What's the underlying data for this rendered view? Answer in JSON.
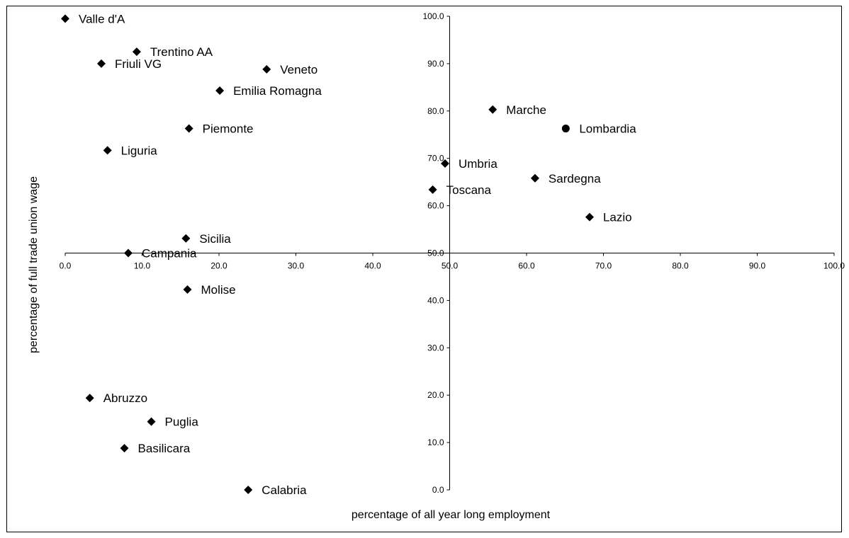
{
  "chart_data": {
    "type": "scatter",
    "xlabel": "percentage of all year long employment",
    "ylabel": "percentage of full trade union wage",
    "xlim": [
      0,
      100
    ],
    "ylim": [
      0,
      100
    ],
    "x_ticks": [
      "0.0",
      "10.0",
      "20.0",
      "30.0",
      "40.0",
      "50.0",
      "60.0",
      "70.0",
      "80.0",
      "90.0",
      "100.0"
    ],
    "y_ticks": [
      "0.0",
      "10.0",
      "20.0",
      "30.0",
      "40.0",
      "50.0",
      "60.0",
      "70.0",
      "80.0",
      "90.0",
      "100.0"
    ],
    "axes_cross": {
      "x": 50,
      "y": 50
    },
    "grid": false,
    "points": [
      {
        "label": "Valle d'A",
        "x": 0.0,
        "y": 99.5,
        "marker": "diamond"
      },
      {
        "label": "Trentino AA",
        "x": 9.3,
        "y": 92.5,
        "marker": "diamond"
      },
      {
        "label": "Friuli VG",
        "x": 4.7,
        "y": 90.0,
        "marker": "diamond"
      },
      {
        "label": "Veneto",
        "x": 26.2,
        "y": 88.8,
        "marker": "diamond"
      },
      {
        "label": "Emilia Romagna",
        "x": 20.1,
        "y": 84.3,
        "marker": "diamond"
      },
      {
        "label": "Piemonte",
        "x": 16.1,
        "y": 76.3,
        "marker": "diamond"
      },
      {
        "label": "Liguria",
        "x": 5.5,
        "y": 71.7,
        "marker": "diamond"
      },
      {
        "label": "Sicilia",
        "x": 15.7,
        "y": 53.1,
        "marker": "diamond"
      },
      {
        "label": "Campania",
        "x": 8.2,
        "y": 50.0,
        "marker": "diamond"
      },
      {
        "label": "Molise",
        "x": 15.9,
        "y": 42.3,
        "marker": "diamond"
      },
      {
        "label": "Abruzzo",
        "x": 3.2,
        "y": 19.4,
        "marker": "diamond"
      },
      {
        "label": "Puglia",
        "x": 11.2,
        "y": 14.4,
        "marker": "diamond"
      },
      {
        "label": "Basilicara",
        "x": 7.7,
        "y": 8.8,
        "marker": "diamond"
      },
      {
        "label": "Calabria",
        "x": 23.8,
        "y": 0.0,
        "marker": "diamond"
      },
      {
        "label": "Marche",
        "x": 55.6,
        "y": 80.3,
        "marker": "diamond"
      },
      {
        "label": "Lombardia",
        "x": 65.1,
        "y": 76.3,
        "marker": "circle"
      },
      {
        "label": "Umbria",
        "x": 49.4,
        "y": 68.9,
        "marker": "diamond"
      },
      {
        "label": "Sardegna",
        "x": 61.1,
        "y": 65.8,
        "marker": "diamond"
      },
      {
        "label": "Toscana",
        "x": 47.8,
        "y": 63.4,
        "marker": "diamond"
      },
      {
        "label": "Lazio",
        "x": 68.2,
        "y": 57.6,
        "marker": "diamond"
      }
    ]
  }
}
